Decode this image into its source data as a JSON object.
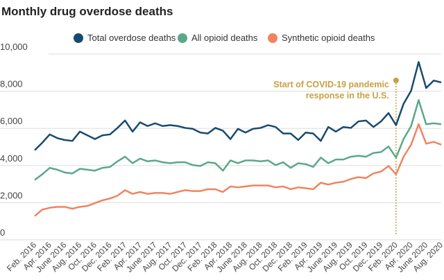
{
  "chart_data": {
    "type": "line",
    "title": "Monthly drug overdose deaths",
    "categories": [
      "Feb. 2016",
      null,
      "Apr. 2016",
      null,
      "June 2016",
      null,
      "Aug. 2016",
      null,
      "Oct. 2016",
      null,
      "Dec. 2016",
      null,
      "Feb. 2017",
      null,
      "Apr. 2017",
      null,
      "June 2017",
      null,
      "Aug. 2017",
      null,
      "Oct. 2017",
      null,
      "Dec. 2017",
      null,
      "Feb. 2018",
      null,
      "Apr. 2018",
      null,
      "June 2018",
      null,
      "Aug. 2018",
      null,
      "Oct. 2018",
      null,
      "Dec. 2018",
      null,
      "Feb. 2019",
      null,
      "Apr. 2019",
      null,
      "June 2019",
      null,
      "Aug. 2019",
      null,
      "Oct. 2019",
      null,
      "Dec. 2019",
      null,
      "Feb. 2020",
      null,
      "Apr. 2020",
      null,
      "June 2020",
      null,
      "Aug. 2020"
    ],
    "series": [
      {
        "name": "Total overdose deaths",
        "color": "#174a6f",
        "values": [
          4600,
          5000,
          5450,
          5250,
          5150,
          5100,
          5600,
          5400,
          5200,
          5400,
          5450,
          5800,
          6200,
          5600,
          6100,
          5900,
          6050,
          5900,
          5950,
          5900,
          5800,
          5750,
          5550,
          5500,
          5800,
          5650,
          5200,
          5750,
          5550,
          5750,
          5800,
          5950,
          5850,
          5500,
          5500,
          5150,
          5550,
          5500,
          5100,
          5850,
          5600,
          5850,
          5800,
          6150,
          6200,
          5850,
          6150,
          6600,
          5950,
          7100,
          7800,
          9350,
          7950,
          8350,
          8250
        ]
      },
      {
        "name": "All opioid deaths",
        "color": "#5aa889",
        "values": [
          3000,
          3300,
          3650,
          3550,
          3400,
          3350,
          3600,
          3550,
          3500,
          3650,
          3700,
          4000,
          4250,
          3900,
          4150,
          4000,
          4050,
          3950,
          3900,
          3950,
          3950,
          3800,
          3750,
          3950,
          3900,
          3500,
          4050,
          3900,
          4050,
          4050,
          4000,
          4050,
          3800,
          3950,
          3650,
          3900,
          3850,
          3700,
          4200,
          3900,
          4100,
          4100,
          4250,
          4300,
          4250,
          4450,
          4500,
          4800,
          4200,
          5200,
          5900,
          7300,
          6000,
          6050,
          6000
        ]
      },
      {
        "name": "Synthetic opioid deaths",
        "color": "#f0845f",
        "values": [
          1050,
          1400,
          1500,
          1550,
          1550,
          1450,
          1550,
          1600,
          1750,
          1900,
          2000,
          2150,
          2450,
          2250,
          2350,
          2250,
          2300,
          2300,
          2250,
          2350,
          2450,
          2400,
          2400,
          2500,
          2500,
          2350,
          2650,
          2600,
          2650,
          2700,
          2700,
          2700,
          2600,
          2650,
          2500,
          2600,
          2550,
          2500,
          2850,
          2750,
          2850,
          2900,
          3050,
          3150,
          3100,
          3350,
          3450,
          3750,
          3300,
          4250,
          4900,
          6000,
          4950,
          5050,
          4900
        ]
      }
    ],
    "ylim": [
      0,
      10000
    ],
    "yticks": [
      0,
      {
        "value": 2000,
        "label": "2,000"
      },
      {
        "value": 4000,
        "label": "4,000"
      },
      {
        "value": 6000,
        "label": "6,000"
      },
      {
        "value": 8000,
        "label": "8,000"
      },
      {
        "value": 10000,
        "label": "10,000"
      }
    ],
    "grid": true,
    "annotation": {
      "lines": [
        "Start of COVID-19 pandemic",
        "response in the U.S."
      ],
      "color": "#c9a043"
    },
    "legend": "top"
  }
}
